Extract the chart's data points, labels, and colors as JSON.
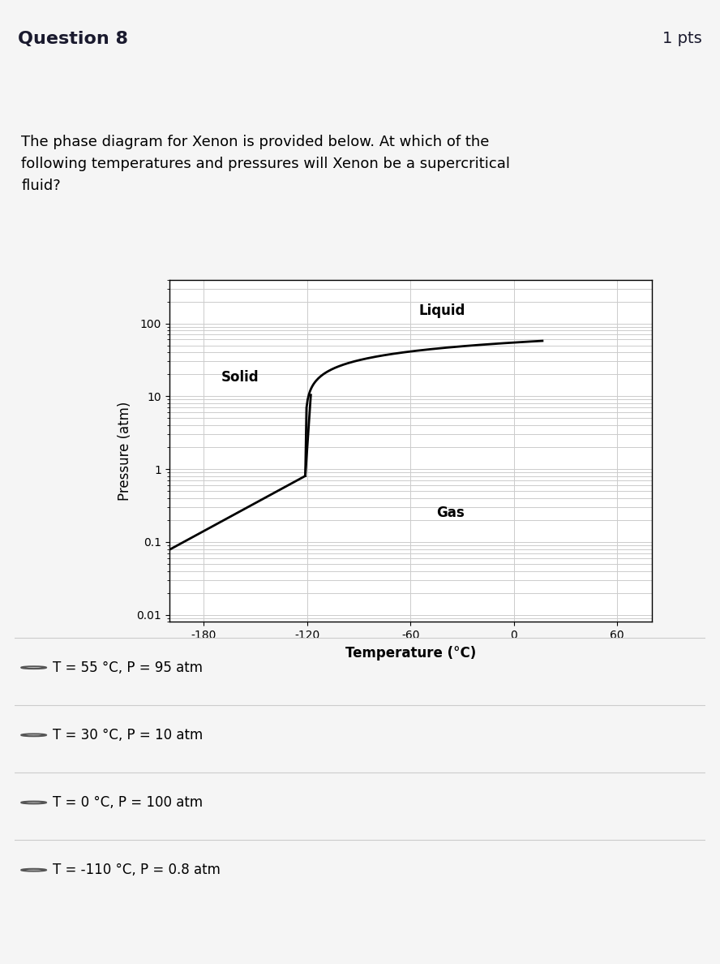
{
  "title": "Question 8",
  "pts": "1 pts",
  "question_text": "The phase diagram for Xenon is provided below. At which of the\nfollowing temperatures and pressures will Xenon be a supercritical\nfluid?",
  "xlabel": "Temperature (°C)",
  "ylabel": "Pressure (atm)",
  "xticks": [
    -180,
    -120,
    -60,
    0,
    60
  ],
  "yticks_log": [
    0.01,
    0.1,
    1,
    10,
    100
  ],
  "options": [
    "T = 55 °C, P = 95 atm",
    "T = 30 °C, P = 10 atm",
    "T = 0 °C, P = 100 atm",
    "T = -110 °C, P = 0.8 atm"
  ],
  "header_bg": "#e8e8e8",
  "plot_bg": "#ffffff",
  "line_color": "#000000",
  "text_color": "#000000",
  "grid_color": "#cccccc",
  "triple_point_T": -121.0,
  "triple_point_P": 0.805,
  "critical_point_T": 16.6,
  "critical_point_P": 57.6
}
